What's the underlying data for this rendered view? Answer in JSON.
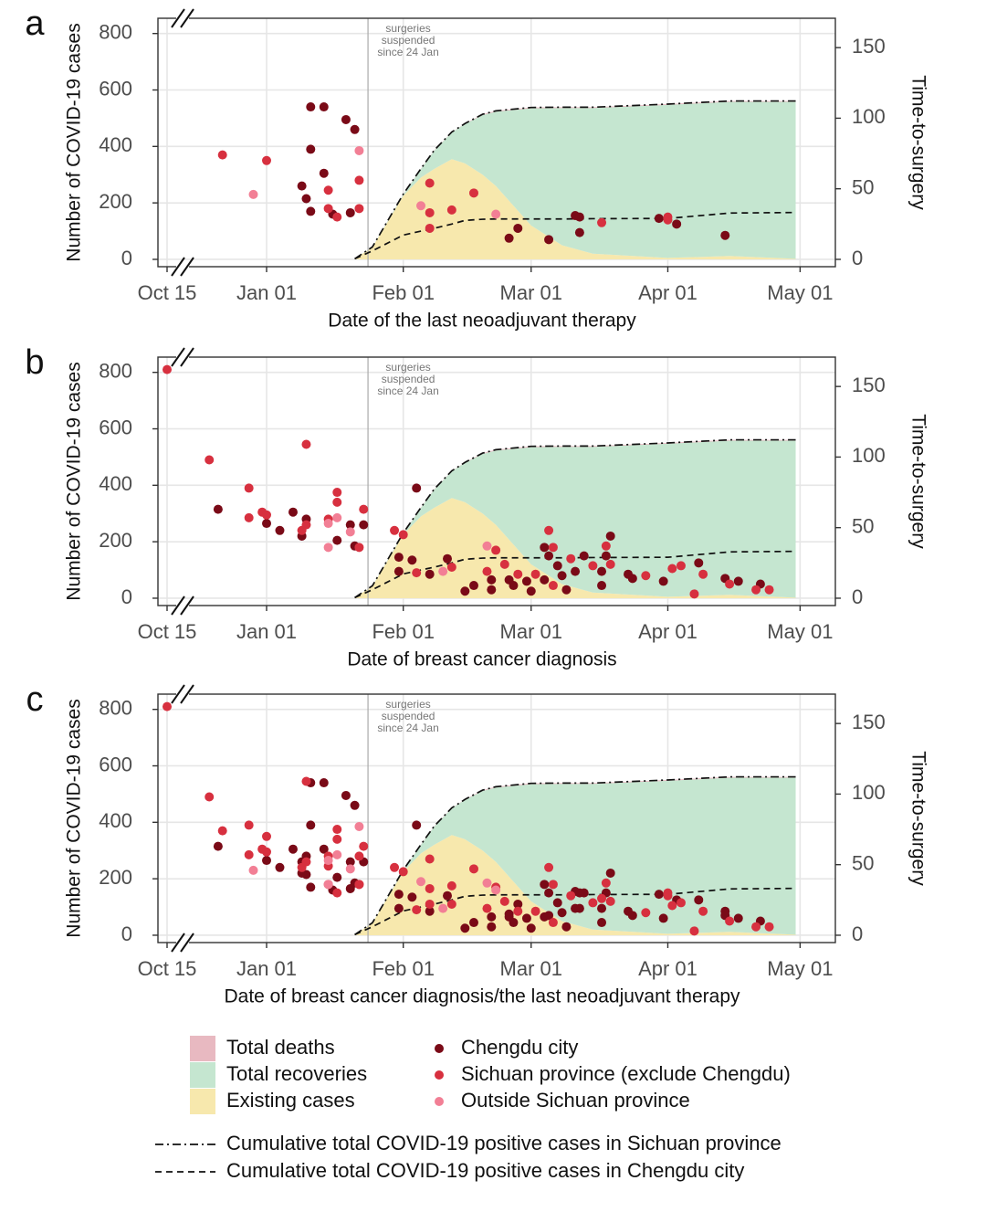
{
  "chart_data": {
    "type": "combo",
    "x_axis_break": true,
    "grid": true,
    "xlim": [
      "10-13",
      "05-09"
    ],
    "xticks": [
      {
        "value": "10-15",
        "label": "Oct 15"
      },
      {
        "value": "01-01",
        "label": "Jan 01"
      },
      {
        "value": "02-01",
        "label": "Feb 01"
      },
      {
        "value": "03-01",
        "label": "Mar 01"
      },
      {
        "value": "04-01",
        "label": "Apr 01"
      },
      {
        "value": "05-01",
        "label": "May 01"
      }
    ],
    "ylim": [
      -26,
      854
    ],
    "yticks": [
      0,
      200,
      400,
      600,
      800
    ],
    "y2lim": [
      -5.2,
      170.8
    ],
    "y2ticks": [
      0,
      50,
      100,
      150
    ],
    "y_label": "Number of COVID-19 cases",
    "y2_label": "Time-to-surgery",
    "annotation": {
      "x": "01-24",
      "text": [
        "surgeries",
        "suspended",
        "since 24 Jan"
      ]
    },
    "x": [
      "01-21",
      "01-25",
      "02-01",
      "02-05",
      "02-08",
      "02-12",
      "02-15",
      "02-19",
      "02-22",
      "03-01",
      "03-08",
      "03-15",
      "04-01",
      "04-15",
      "04-30"
    ],
    "areas": [
      {
        "name": "Total deaths",
        "color": "#e8b9c1",
        "values": [
          0,
          0,
          1,
          1,
          1,
          1,
          1,
          3,
          3,
          3,
          3,
          3,
          3,
          3,
          3
        ]
      },
      {
        "name": "Total recoveries",
        "color": "#c5e6d0",
        "values": [
          0,
          1,
          5,
          30,
          65,
          95,
          140,
          211,
          263,
          415,
          486,
          516,
          542,
          546,
          556
        ]
      },
      {
        "name": "Existing cases",
        "color": "#f7e8ad",
        "values": [
          2,
          43,
          225,
          290,
          320,
          355,
          340,
          300,
          260,
          120,
          50,
          20,
          5,
          12,
          2
        ]
      }
    ],
    "point_groups": [
      {
        "name": "Chengdu city",
        "color": "#7a0a17",
        "axis": "y2"
      },
      {
        "name": "Sichuan province (exclude Chengdu)",
        "color": "#d7303f",
        "axis": "y2"
      },
      {
        "name": "Outside Sichuan province",
        "color": "#f27f95",
        "axis": "y2"
      }
    ],
    "lines": [
      {
        "name": "Cumulative total COVID-19 positive cases in Sichuan province",
        "dash": "dashdot",
        "values": [
          2,
          44,
          231,
          321,
          386,
          451,
          481,
          514,
          526,
          538,
          539,
          539,
          550,
          561,
          561
        ]
      },
      {
        "name": "Cumulative total COVID-19 positive cases in Chengdu city",
        "dash": "dashed",
        "values": [
          2,
          30,
          86,
          100,
          110,
          125,
          138,
          142,
          143,
          143,
          143,
          144,
          145,
          164,
          166
        ]
      }
    ],
    "panels": [
      {
        "label": "a",
        "x_label": "Date of the last neoadjuvant therapy",
        "points": [
          {
            "x": [
              "01-11",
              "01-14",
              "01-11",
              "01-19",
              "01-21",
              "01-09",
              "01-10",
              "01-14",
              "01-11",
              "01-16",
              "01-20",
              "02-27",
              "02-25",
              "03-05",
              "03-11",
              "03-12",
              "03-12",
              "03-30",
              "04-03",
              "04-14"
            ],
            "y": [
              108,
              108,
              78,
              99,
              92,
              52,
              43,
              61,
              34,
              32,
              33,
              22,
              15,
              14,
              31,
              30,
              19,
              29,
              25,
              17
            ]
          },
          {
            "x": [
              "12-22",
              "01-01",
              "01-15",
              "01-15",
              "01-17",
              "01-22",
              "01-22",
              "02-07",
              "02-07",
              "02-07",
              "02-12",
              "02-17",
              "03-17",
              "04-01",
              "04-01"
            ],
            "y": [
              74,
              70,
              49,
              36,
              30,
              56,
              36,
              54,
              33,
              22,
              35,
              47,
              26,
              28,
              30
            ]
          },
          {
            "x": [
              "12-29",
              "01-22",
              "02-05",
              "02-22"
            ],
            "y": [
              46,
              77,
              38,
              32
            ]
          }
        ]
      },
      {
        "label": "b",
        "x_label": "Date of breast cancer diagnosis",
        "points": [
          {
            "x": [
              "12-21",
              "01-01",
              "01-04",
              "01-07",
              "01-09",
              "01-10",
              "01-20",
              "01-17",
              "01-21",
              "01-23",
              "02-04",
              "01-31",
              "01-31",
              "02-03",
              "02-07",
              "02-11",
              "02-15",
              "02-17",
              "02-21",
              "02-21",
              "02-25",
              "02-26",
              "02-29",
              "03-01",
              "03-04",
              "03-05",
              "03-07",
              "03-04",
              "03-08",
              "03-09",
              "03-11",
              "03-13",
              "03-17",
              "03-17",
              "03-18",
              "03-19",
              "03-23",
              "03-24",
              "03-31",
              "04-08",
              "04-14",
              "04-17",
              "04-22"
            ],
            "y": [
              63,
              53,
              48,
              61,
              44,
              56,
              52,
              41,
              37,
              52,
              78,
              29,
              19,
              27,
              17,
              28,
              5,
              9,
              13,
              6,
              13,
              9,
              12,
              5,
              36,
              30,
              23,
              13,
              16,
              6,
              19,
              30,
              19,
              9,
              30,
              44,
              17,
              14,
              12,
              25,
              14,
              12,
              10
            ]
          },
          {
            "x": [
              "10-15",
              "12-19",
              "12-28",
              "12-28",
              "12-31",
              "01-01",
              "01-10",
              "01-09",
              "01-10",
              "01-15",
              "01-17",
              "01-17",
              "01-22",
              "01-23",
              "01-30",
              "02-01",
              "02-04",
              "02-12",
              "02-20",
              "02-22",
              "02-24",
              "02-27",
              "03-02",
              "03-06",
              "03-06",
              "03-05",
              "03-10",
              "03-15",
              "03-19",
              "03-18",
              "03-27",
              "04-02",
              "04-04",
              "04-07",
              "04-09",
              "04-15",
              "04-21",
              "04-24"
            ],
            "y": [
              162,
              98,
              78,
              57,
              61,
              59,
              109,
              48,
              52,
              56,
              75,
              68,
              36,
              63,
              48,
              45,
              18,
              22,
              19,
              34,
              24,
              17,
              17,
              36,
              9,
              48,
              28,
              23,
              24,
              37,
              16,
              21,
              23,
              3,
              17,
              10,
              6,
              6
            ]
          },
          {
            "x": [
              "01-15",
              "01-15",
              "01-17",
              "01-20",
              "02-10",
              "02-20"
            ],
            "y": [
              36,
              53,
              57,
              47,
              19,
              37
            ]
          }
        ]
      },
      {
        "label": "c",
        "x_label": "Date of breast cancer diagnosis/the last neoadjuvant therapy",
        "points": [
          {
            "x": [
              "01-11",
              "01-14",
              "01-11",
              "01-19",
              "01-21",
              "01-09",
              "01-10",
              "01-14",
              "01-11",
              "01-16",
              "01-20",
              "02-27",
              "02-25",
              "03-05",
              "03-11",
              "03-12",
              "03-12",
              "03-30",
              "04-03",
              "04-14",
              "12-21",
              "01-01",
              "01-04",
              "01-07",
              "01-09",
              "01-10",
              "01-20",
              "01-17",
              "01-21",
              "01-23",
              "02-04",
              "01-31",
              "01-31",
              "02-03",
              "02-07",
              "02-11",
              "02-15",
              "02-17",
              "02-21",
              "02-21",
              "02-25",
              "02-26",
              "02-29",
              "03-01",
              "03-04",
              "03-05",
              "03-07",
              "03-04",
              "03-08",
              "03-09",
              "03-11",
              "03-13",
              "03-17",
              "03-17",
              "03-18",
              "03-19",
              "03-23",
              "03-24",
              "03-31",
              "04-08",
              "04-14",
              "04-17",
              "04-22"
            ],
            "y": [
              108,
              108,
              78,
              99,
              92,
              52,
              43,
              61,
              34,
              32,
              33,
              22,
              15,
              14,
              31,
              30,
              19,
              29,
              25,
              17,
              63,
              53,
              48,
              61,
              44,
              56,
              52,
              41,
              37,
              52,
              78,
              29,
              19,
              27,
              17,
              28,
              5,
              9,
              13,
              6,
              13,
              9,
              12,
              5,
              36,
              30,
              23,
              13,
              16,
              6,
              19,
              30,
              19,
              9,
              30,
              44,
              17,
              14,
              12,
              25,
              14,
              12,
              10
            ]
          },
          {
            "x": [
              "12-22",
              "01-01",
              "01-15",
              "01-15",
              "01-17",
              "01-22",
              "01-22",
              "02-07",
              "02-07",
              "02-07",
              "02-12",
              "02-17",
              "03-17",
              "04-01",
              "04-01",
              "10-15",
              "12-19",
              "12-28",
              "12-28",
              "12-31",
              "01-01",
              "01-10",
              "01-09",
              "01-10",
              "01-15",
              "01-17",
              "01-17",
              "01-22",
              "01-23",
              "01-30",
              "02-01",
              "02-04",
              "02-12",
              "02-20",
              "02-22",
              "02-24",
              "02-27",
              "03-02",
              "03-06",
              "03-06",
              "03-05",
              "03-10",
              "03-15",
              "03-19",
              "03-18",
              "03-27",
              "04-02",
              "04-04",
              "04-07",
              "04-09",
              "04-15",
              "04-21",
              "04-24"
            ],
            "y": [
              74,
              70,
              49,
              36,
              30,
              56,
              36,
              54,
              33,
              22,
              35,
              47,
              26,
              28,
              30,
              162,
              98,
              78,
              57,
              61,
              59,
              109,
              48,
              52,
              56,
              75,
              68,
              36,
              63,
              48,
              45,
              18,
              22,
              19,
              34,
              24,
              17,
              17,
              36,
              9,
              48,
              28,
              23,
              24,
              37,
              16,
              21,
              23,
              3,
              17,
              10,
              6,
              6
            ]
          },
          {
            "x": [
              "12-29",
              "01-22",
              "02-05",
              "02-22",
              "01-15",
              "01-15",
              "01-17",
              "01-20",
              "02-10",
              "02-20"
            ],
            "y": [
              46,
              77,
              38,
              32,
              36,
              53,
              57,
              47,
              19,
              37
            ]
          }
        ]
      }
    ]
  }
}
